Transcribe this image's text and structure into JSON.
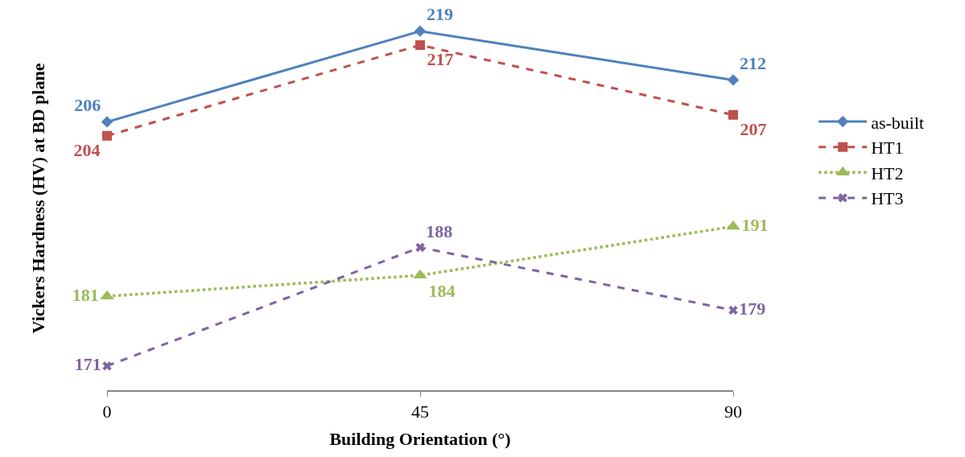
{
  "chart_data": {
    "type": "line",
    "xlabel": "Building Orientation (°)",
    "ylabel": "Vickers Hardness (HV) at BD plane",
    "categories": [
      "0",
      "45",
      "90"
    ],
    "tick_labels": "x",
    "grid": false,
    "legend": "right",
    "data_labels": true,
    "series": [
      {
        "name": "as-built",
        "color": "#4f81bd",
        "marker": "diamond",
        "line_style": "solid",
        "values": [
          206,
          219,
          212
        ]
      },
      {
        "name": "HT1",
        "color": "#c0504d",
        "marker": "square",
        "line_style": "dashed",
        "values": [
          204,
          217,
          207
        ]
      },
      {
        "name": "HT2",
        "color": "#9bbb59",
        "marker": "triangle",
        "line_style": "dotted",
        "values": [
          181,
          184,
          191
        ]
      },
      {
        "name": "HT3",
        "color": "#8064a2",
        "marker": "cross",
        "line_style": "dashed",
        "values": [
          171,
          188,
          179
        ]
      }
    ]
  }
}
